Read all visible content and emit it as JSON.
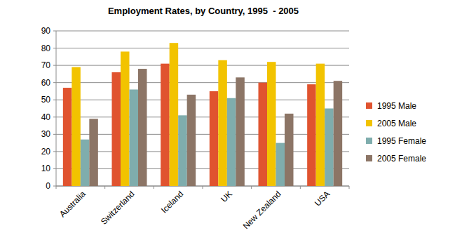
{
  "chart_data": {
    "type": "bar",
    "title": "Employment Rates, by Country, 1995  - 2005",
    "categories": [
      "Australia",
      "Switzerland",
      "Iceland",
      "UK",
      "New Zealand",
      "USA"
    ],
    "series": [
      {
        "name": "1995 Male",
        "color": "#e0532f",
        "values": [
          57,
          66,
          71,
          55,
          60,
          59
        ]
      },
      {
        "name": "2005 Male",
        "color": "#f2c300",
        "values": [
          69,
          78,
          83,
          73,
          72,
          71
        ]
      },
      {
        "name": "1995 Female",
        "color": "#7fadad",
        "values": [
          27,
          56,
          41,
          51,
          25,
          45
        ]
      },
      {
        "name": "2005 Female",
        "color": "#8c7566",
        "values": [
          39,
          68,
          53,
          63,
          42,
          61
        ]
      }
    ],
    "ylim": [
      0,
      90
    ],
    "yticks": [
      0,
      10,
      20,
      30,
      40,
      50,
      60,
      70,
      80,
      90
    ],
    "grid": true,
    "legend": "right"
  }
}
